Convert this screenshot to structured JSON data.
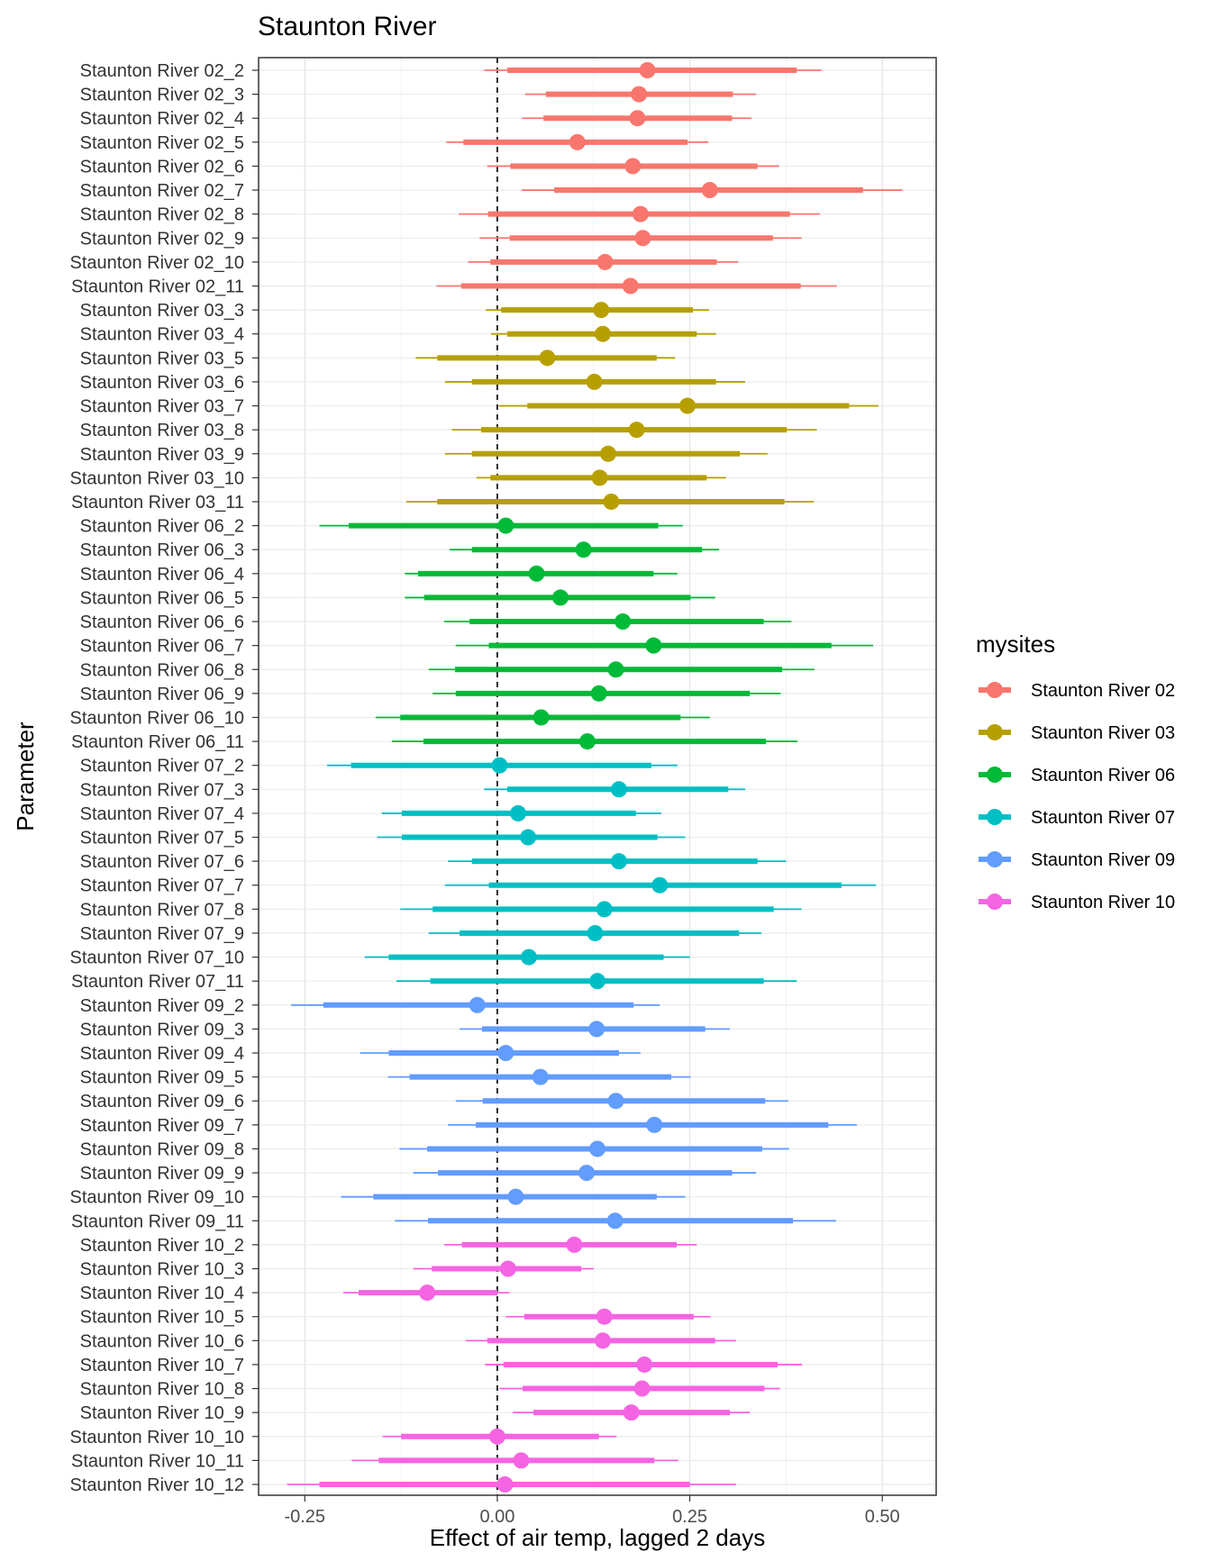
{
  "chart_data": {
    "type": "forest",
    "title": "Staunton River",
    "xlabel": "Effect of air temp, lagged 2 days",
    "ylabel": "Parameter",
    "xlim": [
      -0.31,
      0.57
    ],
    "xticks": [
      -0.25,
      0.0,
      0.25,
      0.5
    ],
    "xtick_labels": [
      "-0.25",
      "0.00",
      "0.25",
      "0.50"
    ],
    "reference_line": 0,
    "legend": {
      "title": "mysites",
      "position": "right",
      "entries": [
        {
          "label": "Staunton River 02",
          "color": "#F8766D"
        },
        {
          "label": "Staunton River 03",
          "color": "#B79F00"
        },
        {
          "label": "Staunton River 06",
          "color": "#00BA38"
        },
        {
          "label": "Staunton River 07",
          "color": "#00BFC4"
        },
        {
          "label": "Staunton River 09",
          "color": "#619CFF"
        },
        {
          "label": "Staunton River 10",
          "color": "#F564E3"
        }
      ]
    },
    "rows": [
      {
        "label": "Staunton River 02_2",
        "site": "Staunton River 02",
        "est": 0.195,
        "lo50": 0.013,
        "hi50": 0.389,
        "lo95": -0.017,
        "hi95": 0.421
      },
      {
        "label": "Staunton River 02_3",
        "site": "Staunton River 02",
        "est": 0.184,
        "lo50": 0.063,
        "hi50": 0.306,
        "lo95": 0.036,
        "hi95": 0.336
      },
      {
        "label": "Staunton River 02_4",
        "site": "Staunton River 02",
        "est": 0.182,
        "lo50": 0.06,
        "hi50": 0.305,
        "lo95": 0.032,
        "hi95": 0.33
      },
      {
        "label": "Staunton River 02_5",
        "site": "Staunton River 02",
        "est": 0.104,
        "lo50": -0.044,
        "hi50": 0.247,
        "lo95": -0.066,
        "hi95": 0.274
      },
      {
        "label": "Staunton River 02_6",
        "site": "Staunton River 02",
        "est": 0.176,
        "lo50": 0.017,
        "hi50": 0.338,
        "lo95": -0.013,
        "hi95": 0.366
      },
      {
        "label": "Staunton River 02_7",
        "site": "Staunton River 02",
        "est": 0.276,
        "lo50": 0.074,
        "hi50": 0.475,
        "lo95": 0.032,
        "hi95": 0.526
      },
      {
        "label": "Staunton River 02_8",
        "site": "Staunton River 02",
        "est": 0.186,
        "lo50": -0.012,
        "hi50": 0.38,
        "lo95": -0.05,
        "hi95": 0.419
      },
      {
        "label": "Staunton River 02_9",
        "site": "Staunton River 02",
        "est": 0.189,
        "lo50": 0.016,
        "hi50": 0.358,
        "lo95": -0.023,
        "hi95": 0.395
      },
      {
        "label": "Staunton River 02_10",
        "site": "Staunton River 02",
        "est": 0.14,
        "lo50": -0.009,
        "hi50": 0.285,
        "lo95": -0.038,
        "hi95": 0.313
      },
      {
        "label": "Staunton River 02_11",
        "site": "Staunton River 02",
        "est": 0.173,
        "lo50": -0.047,
        "hi50": 0.394,
        "lo95": -0.079,
        "hi95": 0.441
      },
      {
        "label": "Staunton River 03_3",
        "site": "Staunton River 03",
        "est": 0.135,
        "lo50": 0.005,
        "hi50": 0.254,
        "lo95": -0.015,
        "hi95": 0.275
      },
      {
        "label": "Staunton River 03_4",
        "site": "Staunton River 03",
        "est": 0.137,
        "lo50": 0.013,
        "hi50": 0.259,
        "lo95": -0.008,
        "hi95": 0.284
      },
      {
        "label": "Staunton River 03_5",
        "site": "Staunton River 03",
        "est": 0.065,
        "lo50": -0.078,
        "hi50": 0.207,
        "lo95": -0.106,
        "hi95": 0.231
      },
      {
        "label": "Staunton River 03_6",
        "site": "Staunton River 03",
        "est": 0.126,
        "lo50": -0.033,
        "hi50": 0.284,
        "lo95": -0.068,
        "hi95": 0.322
      },
      {
        "label": "Staunton River 03_7",
        "site": "Staunton River 03",
        "est": 0.247,
        "lo50": 0.039,
        "hi50": 0.457,
        "lo95": 0.002,
        "hi95": 0.495
      },
      {
        "label": "Staunton River 03_8",
        "site": "Staunton River 03",
        "est": 0.181,
        "lo50": -0.021,
        "hi50": 0.376,
        "lo95": -0.059,
        "hi95": 0.415
      },
      {
        "label": "Staunton River 03_9",
        "site": "Staunton River 03",
        "est": 0.144,
        "lo50": -0.033,
        "hi50": 0.315,
        "lo95": -0.068,
        "hi95": 0.351
      },
      {
        "label": "Staunton River 03_10",
        "site": "Staunton River 03",
        "est": 0.133,
        "lo50": -0.009,
        "hi50": 0.272,
        "lo95": -0.027,
        "hi95": 0.297
      },
      {
        "label": "Staunton River 03_11",
        "site": "Staunton River 03",
        "est": 0.148,
        "lo50": -0.078,
        "hi50": 0.373,
        "lo95": -0.118,
        "hi95": 0.411
      },
      {
        "label": "Staunton River 06_2",
        "site": "Staunton River 06",
        "est": 0.011,
        "lo50": -0.193,
        "hi50": 0.209,
        "lo95": -0.231,
        "hi95": 0.241
      },
      {
        "label": "Staunton River 06_3",
        "site": "Staunton River 06",
        "est": 0.112,
        "lo50": -0.033,
        "hi50": 0.266,
        "lo95": -0.062,
        "hi95": 0.288
      },
      {
        "label": "Staunton River 06_4",
        "site": "Staunton River 06",
        "est": 0.051,
        "lo50": -0.103,
        "hi50": 0.203,
        "lo95": -0.12,
        "hi95": 0.234
      },
      {
        "label": "Staunton River 06_5",
        "site": "Staunton River 06",
        "est": 0.082,
        "lo50": -0.095,
        "hi50": 0.251,
        "lo95": -0.12,
        "hi95": 0.283
      },
      {
        "label": "Staunton River 06_6",
        "site": "Staunton River 06",
        "est": 0.163,
        "lo50": -0.036,
        "hi50": 0.346,
        "lo95": -0.069,
        "hi95": 0.382
      },
      {
        "label": "Staunton River 06_7",
        "site": "Staunton River 06",
        "est": 0.203,
        "lo50": -0.011,
        "hi50": 0.434,
        "lo95": -0.054,
        "hi95": 0.488
      },
      {
        "label": "Staunton River 06_8",
        "site": "Staunton River 06",
        "est": 0.154,
        "lo50": -0.055,
        "hi50": 0.37,
        "lo95": -0.089,
        "hi95": 0.412
      },
      {
        "label": "Staunton River 06_9",
        "site": "Staunton River 06",
        "est": 0.132,
        "lo50": -0.054,
        "hi50": 0.328,
        "lo95": -0.084,
        "hi95": 0.368
      },
      {
        "label": "Staunton River 06_10",
        "site": "Staunton River 06",
        "est": 0.057,
        "lo50": -0.126,
        "hi50": 0.238,
        "lo95": -0.158,
        "hi95": 0.276
      },
      {
        "label": "Staunton River 06_11",
        "site": "Staunton River 06",
        "est": 0.117,
        "lo50": -0.096,
        "hi50": 0.349,
        "lo95": -0.137,
        "hi95": 0.39
      },
      {
        "label": "Staunton River 07_2",
        "site": "Staunton River 07",
        "est": 0.003,
        "lo50": -0.19,
        "hi50": 0.2,
        "lo95": -0.221,
        "hi95": 0.234
      },
      {
        "label": "Staunton River 07_3",
        "site": "Staunton River 07",
        "est": 0.158,
        "lo50": 0.013,
        "hi50": 0.3,
        "lo95": -0.017,
        "hi95": 0.322
      },
      {
        "label": "Staunton River 07_4",
        "site": "Staunton River 07",
        "est": 0.027,
        "lo50": -0.124,
        "hi50": 0.18,
        "lo95": -0.15,
        "hi95": 0.213
      },
      {
        "label": "Staunton River 07_5",
        "site": "Staunton River 07",
        "est": 0.04,
        "lo50": -0.124,
        "hi50": 0.208,
        "lo95": -0.156,
        "hi95": 0.244
      },
      {
        "label": "Staunton River 07_6",
        "site": "Staunton River 07",
        "est": 0.158,
        "lo50": -0.033,
        "hi50": 0.338,
        "lo95": -0.064,
        "hi95": 0.375
      },
      {
        "label": "Staunton River 07_7",
        "site": "Staunton River 07",
        "est": 0.211,
        "lo50": -0.011,
        "hi50": 0.447,
        "lo95": -0.068,
        "hi95": 0.492
      },
      {
        "label": "Staunton River 07_8",
        "site": "Staunton River 07",
        "est": 0.139,
        "lo50": -0.084,
        "hi50": 0.359,
        "lo95": -0.126,
        "hi95": 0.395
      },
      {
        "label": "Staunton River 07_9",
        "site": "Staunton River 07",
        "est": 0.127,
        "lo50": -0.049,
        "hi50": 0.314,
        "lo95": -0.089,
        "hi95": 0.343
      },
      {
        "label": "Staunton River 07_10",
        "site": "Staunton River 07",
        "est": 0.041,
        "lo50": -0.141,
        "hi50": 0.216,
        "lo95": -0.172,
        "hi95": 0.25
      },
      {
        "label": "Staunton River 07_11",
        "site": "Staunton River 07",
        "est": 0.13,
        "lo50": -0.087,
        "hi50": 0.346,
        "lo95": -0.131,
        "hi95": 0.389
      },
      {
        "label": "Staunton River 09_2",
        "site": "Staunton River 09",
        "est": -0.026,
        "lo50": -0.226,
        "hi50": 0.177,
        "lo95": -0.268,
        "hi95": 0.211
      },
      {
        "label": "Staunton River 09_3",
        "site": "Staunton River 09",
        "est": 0.129,
        "lo50": -0.02,
        "hi50": 0.27,
        "lo95": -0.049,
        "hi95": 0.302
      },
      {
        "label": "Staunton River 09_4",
        "site": "Staunton River 09",
        "est": 0.011,
        "lo50": -0.141,
        "hi50": 0.158,
        "lo95": -0.178,
        "hi95": 0.186
      },
      {
        "label": "Staunton River 09_5",
        "site": "Staunton River 09",
        "est": 0.056,
        "lo50": -0.114,
        "hi50": 0.226,
        "lo95": -0.142,
        "hi95": 0.251
      },
      {
        "label": "Staunton River 09_6",
        "site": "Staunton River 09",
        "est": 0.154,
        "lo50": -0.019,
        "hi50": 0.348,
        "lo95": -0.054,
        "hi95": 0.378
      },
      {
        "label": "Staunton River 09_7",
        "site": "Staunton River 09",
        "est": 0.204,
        "lo50": -0.028,
        "hi50": 0.43,
        "lo95": -0.064,
        "hi95": 0.467
      },
      {
        "label": "Staunton River 09_8",
        "site": "Staunton River 09",
        "est": 0.13,
        "lo50": -0.091,
        "hi50": 0.344,
        "lo95": -0.127,
        "hi95": 0.379
      },
      {
        "label": "Staunton River 09_9",
        "site": "Staunton River 09",
        "est": 0.116,
        "lo50": -0.077,
        "hi50": 0.305,
        "lo95": -0.109,
        "hi95": 0.336
      },
      {
        "label": "Staunton River 09_10",
        "site": "Staunton River 09",
        "est": 0.024,
        "lo50": -0.161,
        "hi50": 0.207,
        "lo95": -0.203,
        "hi95": 0.244
      },
      {
        "label": "Staunton River 09_11",
        "site": "Staunton River 09",
        "est": 0.153,
        "lo50": -0.09,
        "hi50": 0.384,
        "lo95": -0.133,
        "hi95": 0.44
      },
      {
        "label": "Staunton River 10_2",
        "site": "Staunton River 10",
        "est": 0.1,
        "lo50": -0.046,
        "hi50": 0.233,
        "lo95": -0.069,
        "hi95": 0.259
      },
      {
        "label": "Staunton River 10_3",
        "site": "Staunton River 10",
        "est": 0.014,
        "lo50": -0.085,
        "hi50": 0.109,
        "lo95": -0.109,
        "hi95": 0.125
      },
      {
        "label": "Staunton River 10_4",
        "site": "Staunton River 10",
        "est": -0.091,
        "lo50": -0.18,
        "hi50": 0.0,
        "lo95": -0.2,
        "hi95": 0.016
      },
      {
        "label": "Staunton River 10_5",
        "site": "Staunton River 10",
        "est": 0.139,
        "lo50": 0.035,
        "hi50": 0.255,
        "lo95": 0.011,
        "hi95": 0.277
      },
      {
        "label": "Staunton River 10_6",
        "site": "Staunton River 10",
        "est": 0.137,
        "lo50": -0.013,
        "hi50": 0.283,
        "lo95": -0.041,
        "hi95": 0.31
      },
      {
        "label": "Staunton River 10_7",
        "site": "Staunton River 10",
        "est": 0.191,
        "lo50": 0.008,
        "hi50": 0.364,
        "lo95": -0.016,
        "hi95": 0.396
      },
      {
        "label": "Staunton River 10_8",
        "site": "Staunton River 10",
        "est": 0.188,
        "lo50": 0.033,
        "hi50": 0.347,
        "lo95": 0.003,
        "hi95": 0.367
      },
      {
        "label": "Staunton River 10_9",
        "site": "Staunton River 10",
        "est": 0.174,
        "lo50": 0.047,
        "hi50": 0.302,
        "lo95": 0.02,
        "hi95": 0.328
      },
      {
        "label": "Staunton River 10_10",
        "site": "Staunton River 10",
        "est": 0.0,
        "lo50": -0.125,
        "hi50": 0.132,
        "lo95": -0.149,
        "hi95": 0.155
      },
      {
        "label": "Staunton River 10_11",
        "site": "Staunton River 10",
        "est": 0.031,
        "lo50": -0.154,
        "hi50": 0.204,
        "lo95": -0.189,
        "hi95": 0.235
      },
      {
        "label": "Staunton River 10_12",
        "site": "Staunton River 10",
        "est": 0.01,
        "lo50": -0.231,
        "hi50": 0.25,
        "lo95": -0.273,
        "hi95": 0.31
      }
    ]
  }
}
